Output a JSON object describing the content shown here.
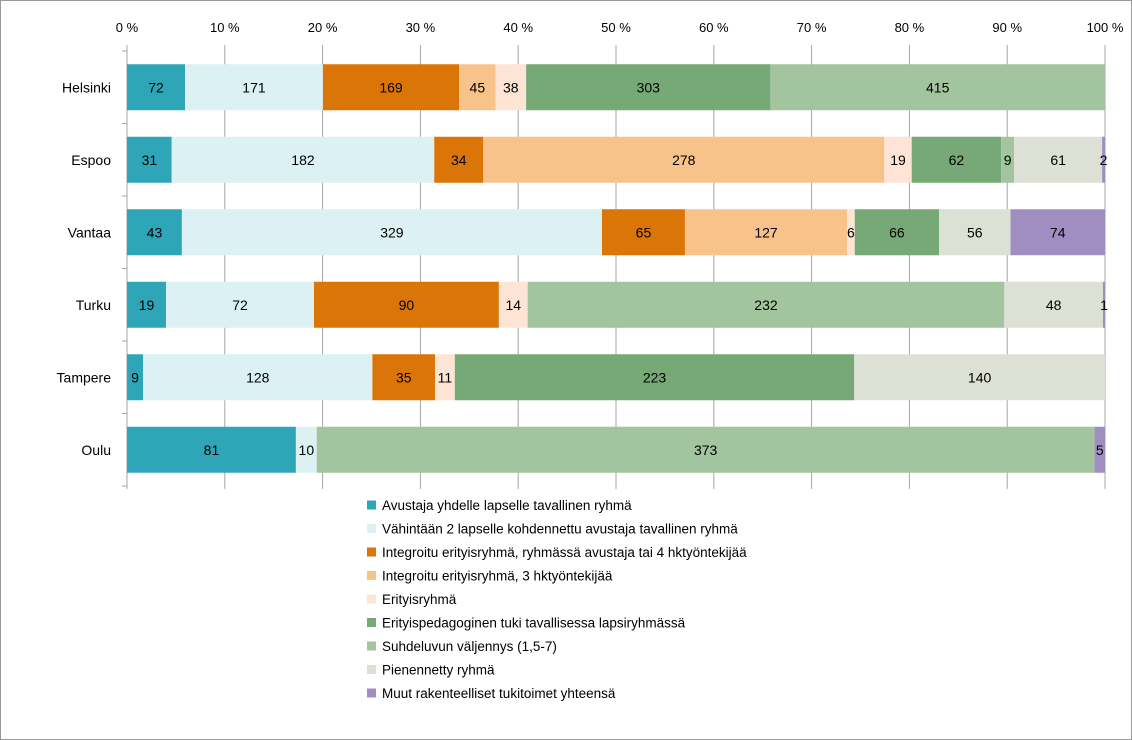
{
  "chart_data": {
    "type": "bar",
    "orientation": "horizontal",
    "stacking": "percent",
    "x_ticks": [
      "0 %",
      "10 %",
      "20 %",
      "30 %",
      "40 %",
      "50 %",
      "60 %",
      "70 %",
      "80 %",
      "90 %",
      "100 %"
    ],
    "xlim": [
      0,
      100
    ],
    "grid": true,
    "legend_position": "bottom",
    "categories": [
      "Helsinki",
      "Espoo",
      "Vantaa",
      "Turku",
      "Tampere",
      "Oulu"
    ],
    "series": [
      {
        "name": "Avustaja yhdelle lapselle tavallinen ryhmä",
        "color": "#2ea6b8",
        "values": [
          72,
          31,
          43,
          19,
          9,
          81
        ]
      },
      {
        "name": "Vähintään 2 lapselle kohdennettu avustaja tavallinen ryhmä",
        "color": "#dbf1f4",
        "values": [
          171,
          182,
          329,
          72,
          128,
          10
        ]
      },
      {
        "name": "Integroitu erityisryhmä, ryhmässä avustaja tai 4 hktyöntekijää",
        "color": "#dc7507",
        "values": [
          169,
          34,
          65,
          90,
          35,
          0
        ]
      },
      {
        "name": "Integroitu erityisryhmä, 3 hktyöntekijää",
        "color": "#f8c28b",
        "values": [
          45,
          278,
          127,
          0,
          0,
          0
        ]
      },
      {
        "name": "Erityisryhmä",
        "color": "#fde4d4",
        "values": [
          38,
          19,
          6,
          14,
          11,
          0
        ]
      },
      {
        "name": "Erityispedagoginen tuki tavallisessa lapsiryhmässä",
        "color": "#76a976",
        "values": [
          303,
          62,
          66,
          0,
          223,
          0
        ]
      },
      {
        "name": "Suhdeluvun väljennys (1,5-7)",
        "color": "#a2c49f",
        "values": [
          415,
          9,
          0,
          232,
          0,
          373
        ]
      },
      {
        "name": "Pienennetty ryhmä",
        "color": "#dde0d4",
        "values": [
          0,
          61,
          56,
          48,
          140,
          0
        ]
      },
      {
        "name": "Muut rakenteelliset tukitoimet yhteensä",
        "color": "#a08ec3",
        "values": [
          0,
          2,
          74,
          1,
          0,
          5
        ]
      }
    ]
  }
}
